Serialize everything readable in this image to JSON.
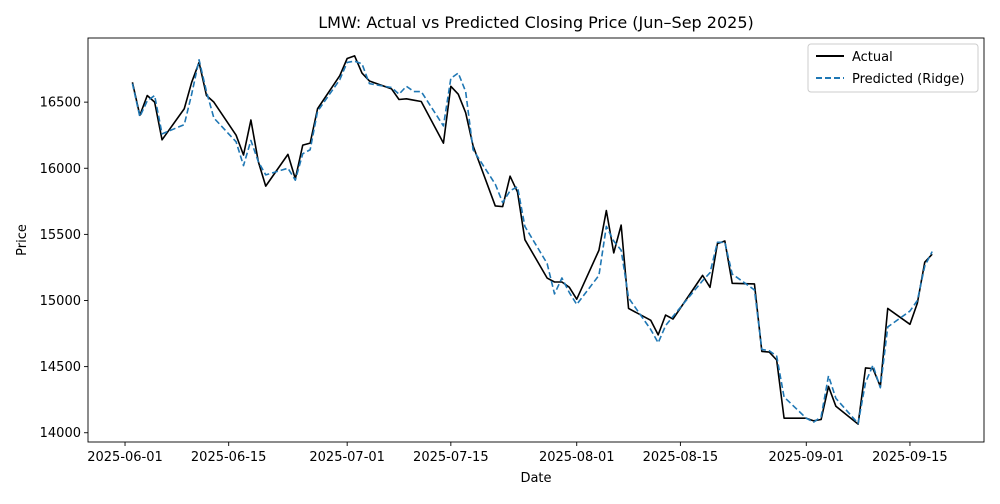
{
  "chart_data": {
    "type": "line",
    "title": "LMW: Actual vs Predicted Closing Price (Jun–Sep 2025)",
    "xlabel": "Date",
    "ylabel": "Price",
    "x_tick_labels": [
      "2025-06-01",
      "2025-06-15",
      "2025-07-01",
      "2025-07-15",
      "2025-08-01",
      "2025-08-15",
      "2025-09-01",
      "2025-09-15"
    ],
    "y_tick_labels": [
      "14000",
      "14500",
      "15000",
      "15500",
      "16000",
      "16500"
    ],
    "ylim": [
      13930,
      16985
    ],
    "xlim": [
      "2025-05-27",
      "2025-09-25"
    ],
    "grid": false,
    "legend_position": "top-right",
    "series": [
      {
        "name": "Actual",
        "color": "#000000",
        "style": "solid",
        "points": [
          [
            "2025-06-02",
            16650
          ],
          [
            "2025-06-03",
            16400
          ],
          [
            "2025-06-04",
            16550
          ],
          [
            "2025-06-05",
            16500
          ],
          [
            "2025-06-06",
            16215
          ],
          [
            "2025-06-09",
            16450
          ],
          [
            "2025-06-10",
            16650
          ],
          [
            "2025-06-11",
            16800
          ],
          [
            "2025-06-12",
            16550
          ],
          [
            "2025-06-13",
            16500
          ],
          [
            "2025-06-16",
            16250
          ],
          [
            "2025-06-17",
            16100
          ],
          [
            "2025-06-18",
            16365
          ],
          [
            "2025-06-19",
            16050
          ],
          [
            "2025-06-20",
            15865
          ],
          [
            "2025-06-23",
            16105
          ],
          [
            "2025-06-24",
            15920
          ],
          [
            "2025-06-25",
            16175
          ],
          [
            "2025-06-26",
            16190
          ],
          [
            "2025-06-27",
            16450
          ],
          [
            "2025-06-30",
            16700
          ],
          [
            "2025-07-01",
            16830
          ],
          [
            "2025-07-02",
            16850
          ],
          [
            "2025-07-03",
            16720
          ],
          [
            "2025-07-04",
            16660
          ],
          [
            "2025-07-07",
            16600
          ],
          [
            "2025-07-08",
            16520
          ],
          [
            "2025-07-09",
            16525
          ],
          [
            "2025-07-10",
            16515
          ],
          [
            "2025-07-11",
            16505
          ],
          [
            "2025-07-14",
            16190
          ],
          [
            "2025-07-15",
            16620
          ],
          [
            "2025-07-16",
            16560
          ],
          [
            "2025-07-17",
            16420
          ],
          [
            "2025-07-18",
            16170
          ],
          [
            "2025-07-21",
            15715
          ],
          [
            "2025-07-22",
            15710
          ],
          [
            "2025-07-23",
            15940
          ],
          [
            "2025-07-24",
            15820
          ],
          [
            "2025-07-25",
            15460
          ],
          [
            "2025-07-28",
            15170
          ],
          [
            "2025-07-29",
            15140
          ],
          [
            "2025-07-30",
            15140
          ],
          [
            "2025-07-31",
            15100
          ],
          [
            "2025-08-01",
            15010
          ],
          [
            "2025-08-04",
            15380
          ],
          [
            "2025-08-05",
            15680
          ],
          [
            "2025-08-06",
            15360
          ],
          [
            "2025-08-07",
            15570
          ],
          [
            "2025-08-08",
            14940
          ],
          [
            "2025-08-11",
            14850
          ],
          [
            "2025-08-12",
            14740
          ],
          [
            "2025-08-13",
            14890
          ],
          [
            "2025-08-14",
            14860
          ],
          [
            "2025-08-18",
            15190
          ],
          [
            "2025-08-19",
            15100
          ],
          [
            "2025-08-20",
            15430
          ],
          [
            "2025-08-21",
            15450
          ],
          [
            "2025-08-22",
            15130
          ],
          [
            "2025-08-25",
            15125
          ],
          [
            "2025-08-26",
            14615
          ],
          [
            "2025-08-27",
            14610
          ],
          [
            "2025-08-28",
            14550
          ],
          [
            "2025-08-29",
            14110
          ],
          [
            "2025-09-01",
            14110
          ],
          [
            "2025-09-02",
            14090
          ],
          [
            "2025-09-03",
            14100
          ],
          [
            "2025-09-04",
            14350
          ],
          [
            "2025-09-05",
            14200
          ],
          [
            "2025-09-08",
            14065
          ],
          [
            "2025-09-09",
            14490
          ],
          [
            "2025-09-10",
            14485
          ],
          [
            "2025-09-11",
            14350
          ],
          [
            "2025-09-12",
            14940
          ],
          [
            "2025-09-15",
            14820
          ],
          [
            "2025-09-16",
            14980
          ],
          [
            "2025-09-17",
            15290
          ],
          [
            "2025-09-18",
            15350
          ]
        ]
      },
      {
        "name": "Predicted (Ridge)",
        "color": "#1f77b4",
        "style": "dashed",
        "points": [
          [
            "2025-06-02",
            16640
          ],
          [
            "2025-06-03",
            16390
          ],
          [
            "2025-06-04",
            16510
          ],
          [
            "2025-06-05",
            16550
          ],
          [
            "2025-06-06",
            16260
          ],
          [
            "2025-06-09",
            16330
          ],
          [
            "2025-06-10",
            16560
          ],
          [
            "2025-06-11",
            16820
          ],
          [
            "2025-06-12",
            16580
          ],
          [
            "2025-06-13",
            16380
          ],
          [
            "2025-06-16",
            16200
          ],
          [
            "2025-06-17",
            16020
          ],
          [
            "2025-06-18",
            16210
          ],
          [
            "2025-06-19",
            16050
          ],
          [
            "2025-06-20",
            15950
          ],
          [
            "2025-06-23",
            16000
          ],
          [
            "2025-06-24",
            15910
          ],
          [
            "2025-06-25",
            16110
          ],
          [
            "2025-06-26",
            16140
          ],
          [
            "2025-06-27",
            16430
          ],
          [
            "2025-06-30",
            16670
          ],
          [
            "2025-07-01",
            16800
          ],
          [
            "2025-07-02",
            16810
          ],
          [
            "2025-07-03",
            16790
          ],
          [
            "2025-07-04",
            16640
          ],
          [
            "2025-07-07",
            16610
          ],
          [
            "2025-07-08",
            16560
          ],
          [
            "2025-07-09",
            16620
          ],
          [
            "2025-07-10",
            16580
          ],
          [
            "2025-07-11",
            16580
          ],
          [
            "2025-07-14",
            16320
          ],
          [
            "2025-07-15",
            16680
          ],
          [
            "2025-07-16",
            16720
          ],
          [
            "2025-07-17",
            16580
          ],
          [
            "2025-07-18",
            16140
          ],
          [
            "2025-07-21",
            15880
          ],
          [
            "2025-07-22",
            15740
          ],
          [
            "2025-07-23",
            15830
          ],
          [
            "2025-07-24",
            15860
          ],
          [
            "2025-07-25",
            15560
          ],
          [
            "2025-07-28",
            15280
          ],
          [
            "2025-07-29",
            15050
          ],
          [
            "2025-07-30",
            15170
          ],
          [
            "2025-07-31",
            15060
          ],
          [
            "2025-08-01",
            14970
          ],
          [
            "2025-08-04",
            15190
          ],
          [
            "2025-08-05",
            15560
          ],
          [
            "2025-08-06",
            15450
          ],
          [
            "2025-08-07",
            15380
          ],
          [
            "2025-08-08",
            15020
          ],
          [
            "2025-08-11",
            14780
          ],
          [
            "2025-08-12",
            14680
          ],
          [
            "2025-08-13",
            14810
          ],
          [
            "2025-08-14",
            14880
          ],
          [
            "2025-08-18",
            15150
          ],
          [
            "2025-08-19",
            15210
          ],
          [
            "2025-08-20",
            15440
          ],
          [
            "2025-08-21",
            15440
          ],
          [
            "2025-08-22",
            15200
          ],
          [
            "2025-08-25",
            15080
          ],
          [
            "2025-08-26",
            14630
          ],
          [
            "2025-08-27",
            14620
          ],
          [
            "2025-08-28",
            14580
          ],
          [
            "2025-08-29",
            14270
          ],
          [
            "2025-09-01",
            14110
          ],
          [
            "2025-09-02",
            14080
          ],
          [
            "2025-09-03",
            14120
          ],
          [
            "2025-09-04",
            14430
          ],
          [
            "2025-09-05",
            14260
          ],
          [
            "2025-09-08",
            14070
          ],
          [
            "2025-09-09",
            14380
          ],
          [
            "2025-09-10",
            14510
          ],
          [
            "2025-09-11",
            14340
          ],
          [
            "2025-09-12",
            14800
          ],
          [
            "2025-09-15",
            14920
          ],
          [
            "2025-09-16",
            15000
          ],
          [
            "2025-09-17",
            15260
          ],
          [
            "2025-09-18",
            15370
          ]
        ]
      }
    ]
  }
}
